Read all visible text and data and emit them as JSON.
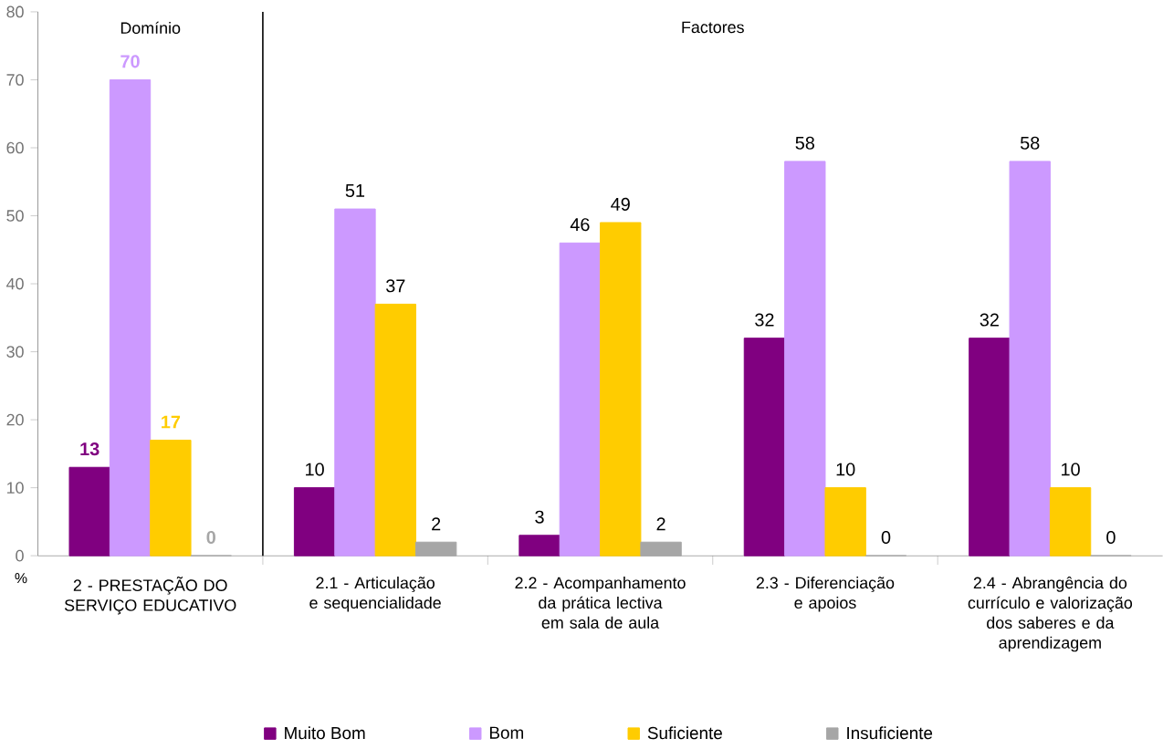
{
  "chart_data": {
    "type": "bar",
    "ylabel": "%",
    "categories": [
      "2 - PRESTAÇÃO DO SERVIÇO EDUCATIVO",
      "2.1 - Articulação e sequencialidade",
      "2.2 - Acompanhamento da prática lectiva em sala de aula",
      "2.3 - Diferenciação e apoios",
      "2.4 - Abrangência do currículo e valorização dos saberes e da aprendizagem"
    ],
    "series": [
      {
        "name": "Muito Bom",
        "color": "#800080",
        "values": [
          13,
          10,
          3,
          32,
          32
        ]
      },
      {
        "name": "Bom",
        "color": "#cc99ff",
        "values": [
          70,
          51,
          46,
          58,
          58
        ]
      },
      {
        "name": "Suficiente",
        "color": "#ffcc00",
        "values": [
          17,
          37,
          49,
          10,
          10
        ]
      },
      {
        "name": "Insuficiente",
        "color": "#a6a6a6",
        "values": [
          0,
          2,
          2,
          0,
          0
        ]
      }
    ],
    "ylim": [
      0,
      80
    ],
    "yticks": [
      0,
      10,
      20,
      30,
      40,
      50,
      60,
      70,
      80
    ],
    "annotations": [
      "Domínio",
      "Factores"
    ],
    "data_labels": true,
    "legend": "bottom",
    "grid": false
  }
}
